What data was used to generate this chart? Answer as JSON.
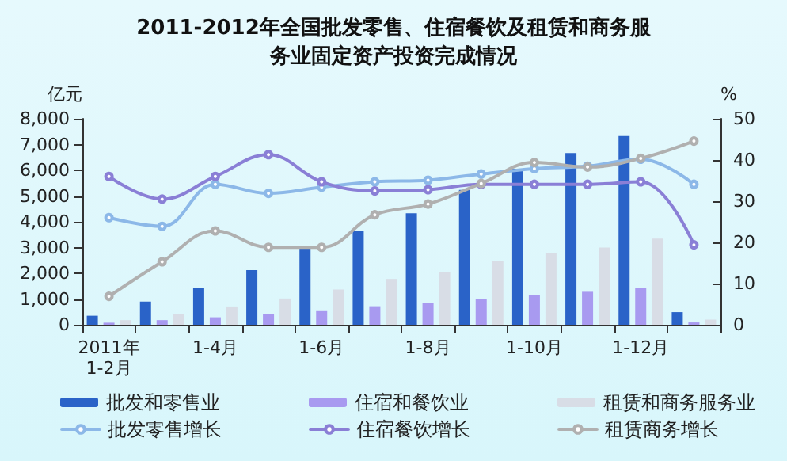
{
  "chart_data": {
    "type": "bar",
    "title": "2011-2012年全国批发零售、住宿餐饮及租赁和商务服务业固定资产投资完成情况",
    "categories": [
      "2011年\n1-2月",
      null,
      "1-4月",
      null,
      "1-6月",
      null,
      "1-8月",
      null,
      "1-10月",
      null,
      "1-12月",
      null
    ],
    "ylabel": "亿元",
    "y2label": "%",
    "series": [
      {
        "name": "批发和零售业",
        "color": "#2a63c8",
        "values": [
          350,
          900,
          1430,
          2120,
          2960,
          3650,
          4330,
          5240,
          6060,
          6670,
          7330,
          490
        ]
      },
      {
        "name": "住宿和餐饮业",
        "color": "#a89af0",
        "values": [
          80,
          180,
          290,
          420,
          560,
          720,
          860,
          1000,
          1150,
          1280,
          1420,
          90
        ]
      },
      {
        "name": "租赁和商务服务业",
        "color": "#d8dde6",
        "values": [
          180,
          410,
          710,
          1020,
          1370,
          1780,
          2040,
          2470,
          2800,
          3000,
          3350,
          200
        ]
      },
      {
        "name": "批发零售增长",
        "type": "line",
        "axis": "y2",
        "color": "#8cb8e8",
        "values": [
          26.0,
          23.9,
          34.1,
          31.9,
          33.4,
          34.7,
          35.1,
          36.6,
          37.9,
          38.5,
          40.2,
          34.1
        ]
      },
      {
        "name": "住宿餐饮增长",
        "type": "line",
        "axis": "y2",
        "color": "#8a7fd6",
        "values": [
          36.0,
          30.5,
          36.0,
          41.3,
          34.7,
          32.5,
          32.8,
          34.1,
          34.1,
          34.1,
          34.7,
          19.4
        ]
      },
      {
        "name": "租赁商务增长",
        "type": "line",
        "axis": "y2",
        "color": "#b0b0b0",
        "values": [
          6.9,
          15.3,
          22.8,
          18.8,
          18.8,
          26.7,
          29.3,
          34.3,
          39.4,
          38.3,
          40.4,
          44.6
        ]
      }
    ],
    "ylim": [
      0,
      8000
    ],
    "yticks": [
      0,
      {
        "value": 1000,
        "label": "1,000"
      },
      {
        "value": 2000,
        "label": "2,000"
      },
      {
        "value": 3000,
        "label": "3,000"
      },
      {
        "value": 4000,
        "label": "4,000"
      },
      {
        "value": 5000,
        "label": "5,000"
      },
      {
        "value": 6000,
        "label": "6,000"
      },
      {
        "value": 7000,
        "label": "7,000"
      },
      {
        "value": 8000,
        "label": "8,000"
      }
    ],
    "y2lim": [
      0,
      50
    ],
    "y2ticks": [
      0,
      10,
      20,
      30,
      40,
      50
    ],
    "grid": false,
    "legend": "bottom",
    "marker": "circle",
    "line_style": "solid"
  }
}
